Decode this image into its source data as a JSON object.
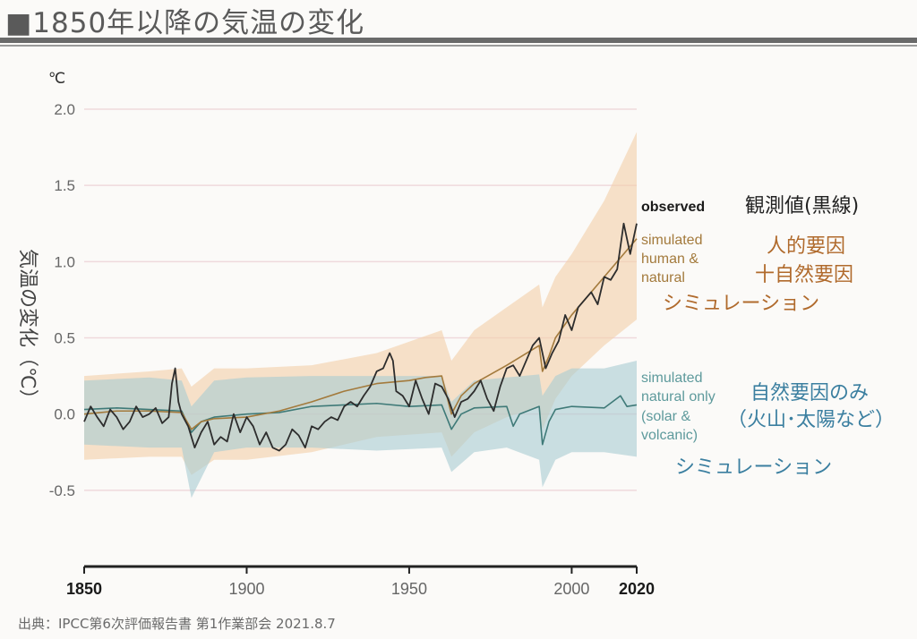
{
  "header": {
    "title": "■1850年以降の気温の変化"
  },
  "source": "出典：IPCC第6次評価報告書 第1作業部会 2021.8.7",
  "chart_data": {
    "type": "line",
    "xlabel": "",
    "ylabel": "気温の変化（℃）",
    "unit_label": "℃",
    "xlim": [
      1850,
      2020
    ],
    "ylim": [
      -1.0,
      2.0
    ],
    "y_ticks": [
      "2.0",
      "1.5",
      "1.0",
      "0.5",
      "0.0",
      "-0.5"
    ],
    "y_tick_values": [
      2.0,
      1.5,
      1.0,
      0.5,
      0.0,
      -0.5
    ],
    "x_ticks": [
      "1850",
      "1900",
      "1950",
      "2000",
      "2020"
    ],
    "x_tick_values": [
      1850,
      1900,
      1950,
      2000,
      2020
    ],
    "grid": true,
    "colors": {
      "observed": "#2d2d2d",
      "human_natural": "#a37a3c",
      "human_natural_band": "#f3cfa8",
      "natural_only": "#3f7a78",
      "natural_only_band": "#a9ccd2"
    },
    "series": [
      {
        "name": "observed",
        "x": [
          1850,
          1852,
          1854,
          1856,
          1858,
          1860,
          1862,
          1864,
          1866,
          1868,
          1870,
          1872,
          1874,
          1876,
          1877,
          1878,
          1879,
          1880,
          1882,
          1884,
          1886,
          1888,
          1890,
          1892,
          1894,
          1896,
          1898,
          1900,
          1902,
          1904,
          1906,
          1908,
          1910,
          1912,
          1914,
          1916,
          1918,
          1920,
          1922,
          1924,
          1926,
          1928,
          1930,
          1932,
          1934,
          1936,
          1938,
          1940,
          1942,
          1944,
          1945,
          1946,
          1948,
          1950,
          1952,
          1954,
          1956,
          1958,
          1960,
          1962,
          1964,
          1966,
          1968,
          1970,
          1972,
          1974,
          1976,
          1978,
          1980,
          1982,
          1984,
          1986,
          1988,
          1990,
          1992,
          1994,
          1996,
          1998,
          2000,
          2002,
          2004,
          2006,
          2008,
          2010,
          2012,
          2014,
          2016,
          2018,
          2020
        ],
        "values": [
          -0.05,
          0.05,
          -0.02,
          -0.08,
          0.03,
          -0.02,
          -0.1,
          -0.05,
          0.05,
          -0.02,
          0.0,
          0.04,
          -0.06,
          -0.02,
          0.2,
          0.3,
          0.08,
          0.0,
          -0.08,
          -0.22,
          -0.12,
          -0.05,
          -0.2,
          -0.15,
          -0.18,
          0.0,
          -0.12,
          -0.02,
          -0.08,
          -0.2,
          -0.12,
          -0.22,
          -0.24,
          -0.2,
          -0.1,
          -0.14,
          -0.22,
          -0.08,
          -0.1,
          -0.05,
          -0.02,
          -0.04,
          0.05,
          0.08,
          0.05,
          0.12,
          0.18,
          0.28,
          0.3,
          0.4,
          0.35,
          0.15,
          0.12,
          0.05,
          0.22,
          0.1,
          0.0,
          0.2,
          0.18,
          0.1,
          -0.02,
          0.08,
          0.1,
          0.15,
          0.22,
          0.1,
          0.02,
          0.18,
          0.3,
          0.32,
          0.25,
          0.35,
          0.45,
          0.5,
          0.3,
          0.4,
          0.48,
          0.65,
          0.55,
          0.7,
          0.75,
          0.8,
          0.72,
          0.9,
          0.88,
          0.95,
          1.25,
          1.05,
          1.25
        ]
      },
      {
        "name": "simulated human & natural",
        "x": [
          1850,
          1860,
          1870,
          1880,
          1883,
          1886,
          1890,
          1900,
          1910,
          1920,
          1930,
          1940,
          1950,
          1955,
          1960,
          1963,
          1966,
          1970,
          1980,
          1990,
          1991,
          1993,
          1995,
          2000,
          2010,
          2020
        ],
        "values": [
          0.0,
          0.02,
          0.02,
          0.01,
          -0.1,
          -0.05,
          -0.03,
          -0.02,
          0.02,
          0.08,
          0.15,
          0.2,
          0.22,
          0.24,
          0.25,
          0.0,
          0.12,
          0.2,
          0.32,
          0.45,
          0.28,
          0.38,
          0.5,
          0.65,
          0.9,
          1.15
        ]
      },
      {
        "name": "simulated natural only",
        "x": [
          1850,
          1860,
          1870,
          1880,
          1883,
          1886,
          1890,
          1900,
          1910,
          1920,
          1930,
          1940,
          1950,
          1960,
          1963,
          1966,
          1970,
          1980,
          1982,
          1984,
          1990,
          1991,
          1993,
          1995,
          2000,
          2010,
          2015,
          2017,
          2020
        ],
        "values": [
          0.03,
          0.04,
          0.03,
          0.02,
          -0.12,
          -0.05,
          -0.02,
          0.0,
          0.01,
          0.05,
          0.06,
          0.07,
          0.05,
          0.06,
          -0.1,
          0.0,
          0.04,
          0.05,
          -0.08,
          0.0,
          0.05,
          -0.2,
          -0.05,
          0.03,
          0.05,
          0.04,
          0.12,
          0.05,
          0.06
        ]
      }
    ],
    "bands": [
      {
        "name": "simulated human & natural range",
        "x": [
          1850,
          1870,
          1880,
          1883,
          1890,
          1900,
          1920,
          1940,
          1960,
          1963,
          1970,
          1980,
          1990,
          1991,
          1995,
          2000,
          2010,
          2020
        ],
        "lower": [
          -0.3,
          -0.28,
          -0.28,
          -0.4,
          -0.3,
          -0.3,
          -0.25,
          -0.15,
          -0.12,
          -0.28,
          -0.12,
          -0.02,
          0.05,
          -0.1,
          0.1,
          0.25,
          0.45,
          0.62
        ],
        "upper": [
          0.25,
          0.28,
          0.3,
          0.18,
          0.3,
          0.3,
          0.32,
          0.4,
          0.55,
          0.35,
          0.55,
          0.7,
          0.85,
          0.7,
          0.9,
          1.05,
          1.4,
          1.85
        ]
      },
      {
        "name": "simulated natural only range",
        "x": [
          1850,
          1870,
          1880,
          1883,
          1890,
          1900,
          1920,
          1940,
          1960,
          1963,
          1970,
          1980,
          1990,
          1991,
          1995,
          2000,
          2010,
          2020
        ],
        "lower": [
          -0.2,
          -0.22,
          -0.22,
          -0.55,
          -0.25,
          -0.22,
          -0.22,
          -0.24,
          -0.22,
          -0.38,
          -0.25,
          -0.22,
          -0.3,
          -0.48,
          -0.3,
          -0.25,
          -0.25,
          -0.28
        ],
        "upper": [
          0.22,
          0.24,
          0.22,
          0.05,
          0.22,
          0.24,
          0.25,
          0.25,
          0.25,
          0.08,
          0.22,
          0.24,
          0.26,
          0.12,
          0.25,
          0.3,
          0.3,
          0.35
        ]
      }
    ],
    "annotations": {
      "observed_en": "observed",
      "observed_jp": "観測値(黒線)",
      "human_en_1": "simulated",
      "human_en_2": "human &",
      "human_en_3": "natural",
      "human_jp_1": "人的要因",
      "human_jp_2": "十自然要因",
      "human_jp_3": "シミュレーション",
      "natural_en_1": "simulated",
      "natural_en_2": "natural only",
      "natural_en_3": "(solar &",
      "natural_en_4": "volcanic)",
      "natural_jp_1": "自然要因のみ",
      "natural_jp_2": "（火山･太陽など）",
      "natural_jp_3": "シミュレーション"
    }
  }
}
